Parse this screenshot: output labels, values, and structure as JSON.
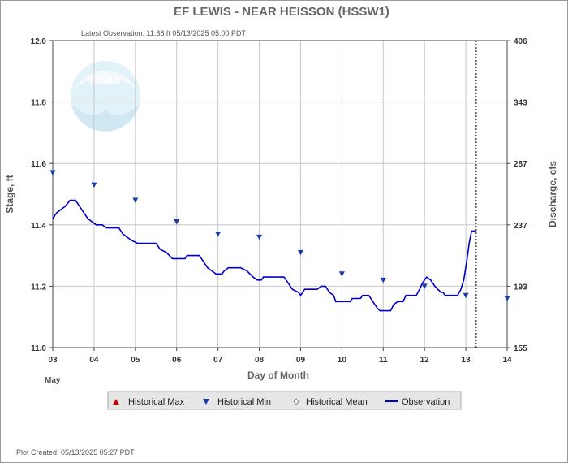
{
  "chart_data": {
    "type": "line",
    "title": "EF LEWIS - NEAR HEISSON  (HSSW1)",
    "subtitle": "Latest Observation: 11.38 ft 05/13/2025 05:00 PDT",
    "xlabel": "Day of Month",
    "x_sublabel": "May",
    "ylabel": "Stage, ft",
    "y2label": "Discharge, cfs",
    "footer": "Plot Created: 05/13/2025 05:27 PDT",
    "watermark": "NOAA",
    "x_ticks": [
      "03",
      "04",
      "05",
      "06",
      "07",
      "08",
      "09",
      "10",
      "11",
      "12",
      "13",
      "14"
    ],
    "xlim": [
      3,
      14
    ],
    "ylim": [
      11.0,
      12.0
    ],
    "y_ticks": [
      "11.0",
      "11.2",
      "11.4",
      "11.6",
      "11.8",
      "12.0"
    ],
    "y2_ticks": [
      "155",
      "193",
      "237",
      "287",
      "343",
      "406"
    ],
    "grid": true,
    "latest_observation_day": 13.25,
    "legend": [
      {
        "label": "Historical Max",
        "marker": "triangle-up",
        "color": "#cc0000"
      },
      {
        "label": "Historical Min",
        "marker": "triangle-down",
        "color": "#1a3aa8"
      },
      {
        "label": "Historical Mean",
        "marker": "diamond",
        "color": "#bbbbbb"
      },
      {
        "label": "Observation",
        "marker": "line",
        "color": "#0000cc"
      }
    ],
    "series": [
      {
        "name": "Observation",
        "color": "#0000cc",
        "points": [
          [
            3.0,
            11.42
          ],
          [
            3.1,
            11.44
          ],
          [
            3.2,
            11.45
          ],
          [
            3.3,
            11.46
          ],
          [
            3.42,
            11.48
          ],
          [
            3.55,
            11.48
          ],
          [
            3.65,
            11.46
          ],
          [
            3.75,
            11.44
          ],
          [
            3.85,
            11.42
          ],
          [
            3.95,
            11.41
          ],
          [
            4.05,
            11.4
          ],
          [
            4.2,
            11.4
          ],
          [
            4.3,
            11.39
          ],
          [
            4.6,
            11.39
          ],
          [
            4.7,
            11.37
          ],
          [
            4.8,
            11.36
          ],
          [
            4.9,
            11.35
          ],
          [
            5.05,
            11.34
          ],
          [
            5.5,
            11.34
          ],
          [
            5.6,
            11.32
          ],
          [
            5.75,
            11.31
          ],
          [
            5.9,
            11.29
          ],
          [
            6.2,
            11.29
          ],
          [
            6.25,
            11.3
          ],
          [
            6.55,
            11.3
          ],
          [
            6.65,
            11.28
          ],
          [
            6.75,
            11.26
          ],
          [
            6.85,
            11.25
          ],
          [
            6.95,
            11.24
          ],
          [
            7.1,
            11.24
          ],
          [
            7.15,
            11.25
          ],
          [
            7.25,
            11.26
          ],
          [
            7.55,
            11.26
          ],
          [
            7.7,
            11.25
          ],
          [
            7.85,
            11.23
          ],
          [
            7.95,
            11.22
          ],
          [
            8.05,
            11.22
          ],
          [
            8.1,
            11.23
          ],
          [
            8.6,
            11.23
          ],
          [
            8.7,
            11.21
          ],
          [
            8.8,
            11.19
          ],
          [
            8.95,
            11.18
          ],
          [
            9.0,
            11.17
          ],
          [
            9.1,
            11.19
          ],
          [
            9.4,
            11.19
          ],
          [
            9.5,
            11.2
          ],
          [
            9.6,
            11.2
          ],
          [
            9.7,
            11.18
          ],
          [
            9.8,
            11.17
          ],
          [
            9.85,
            11.15
          ],
          [
            10.2,
            11.15
          ],
          [
            10.25,
            11.16
          ],
          [
            10.45,
            11.16
          ],
          [
            10.5,
            11.17
          ],
          [
            10.65,
            11.17
          ],
          [
            10.75,
            11.15
          ],
          [
            10.85,
            11.13
          ],
          [
            10.92,
            11.12
          ],
          [
            11.18,
            11.12
          ],
          [
            11.25,
            11.14
          ],
          [
            11.35,
            11.15
          ],
          [
            11.48,
            11.15
          ],
          [
            11.55,
            11.17
          ],
          [
            11.8,
            11.17
          ],
          [
            11.88,
            11.19
          ],
          [
            11.95,
            11.21
          ],
          [
            12.0,
            11.22
          ],
          [
            12.05,
            11.23
          ],
          [
            12.15,
            11.22
          ],
          [
            12.25,
            11.2
          ],
          [
            12.32,
            11.19
          ],
          [
            12.4,
            11.18
          ],
          [
            12.45,
            11.18
          ],
          [
            12.5,
            11.17
          ],
          [
            12.8,
            11.17
          ],
          [
            12.88,
            11.19
          ],
          [
            12.95,
            11.22
          ],
          [
            13.02,
            11.28
          ],
          [
            13.08,
            11.34
          ],
          [
            13.14,
            11.38
          ],
          [
            13.25,
            11.38
          ]
        ]
      },
      {
        "name": "Historical Min",
        "color": "#1a3aa8",
        "points": [
          [
            3.0,
            11.57
          ],
          [
            4.0,
            11.53
          ],
          [
            5.0,
            11.48
          ],
          [
            6.0,
            11.41
          ],
          [
            7.0,
            11.37
          ],
          [
            8.0,
            11.36
          ],
          [
            9.0,
            11.31
          ],
          [
            10.0,
            11.24
          ],
          [
            11.0,
            11.22
          ],
          [
            12.0,
            11.2
          ],
          [
            13.0,
            11.17
          ],
          [
            14.0,
            11.16
          ]
        ]
      }
    ]
  }
}
